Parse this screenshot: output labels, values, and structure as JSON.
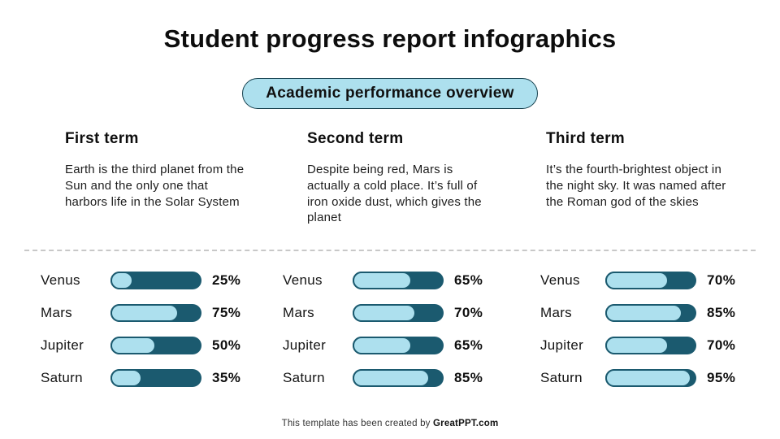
{
  "title": "Student progress report infographics",
  "badge": {
    "label": "Academic performance overview"
  },
  "columns": [
    {
      "heading": "First term",
      "description": "Earth is the third planet from the Sun and the only one that harbors life in the Solar System",
      "bars": [
        {
          "label": "Venus",
          "value": 25,
          "display": "25%"
        },
        {
          "label": "Mars",
          "value": 75,
          "display": "75%"
        },
        {
          "label": "Jupiter",
          "value": 50,
          "display": "50%"
        },
        {
          "label": "Saturn",
          "value": 35,
          "display": "35%"
        }
      ]
    },
    {
      "heading": "Second term",
      "description": "Despite being red, Mars is actually a cold place. It’s full of iron oxide dust, which gives the planet",
      "bars": [
        {
          "label": "Venus",
          "value": 65,
          "display": "65%"
        },
        {
          "label": "Mars",
          "value": 70,
          "display": "70%"
        },
        {
          "label": "Jupiter",
          "value": 65,
          "display": "65%"
        },
        {
          "label": "Saturn",
          "value": 85,
          "display": "85%"
        }
      ]
    },
    {
      "heading": "Third term",
      "description": "It’s the fourth-brightest object in the night sky. It was named after the Roman god of the skies",
      "bars": [
        {
          "label": "Venus",
          "value": 70,
          "display": "70%"
        },
        {
          "label": "Mars",
          "value": 85,
          "display": "85%"
        },
        {
          "label": "Jupiter",
          "value": 70,
          "display": "70%"
        },
        {
          "label": "Saturn",
          "value": 95,
          "display": "95%"
        }
      ]
    }
  ],
  "footer": {
    "text": "This template has been created by ",
    "brand": "GreatPPT.com"
  },
  "colors": {
    "bar-dark": "#1B5A6F",
    "bar-light": "#ADE0EE",
    "badge-border": "#16414F",
    "divider": "#C8C8C8",
    "text": "#111111"
  },
  "chart_data": [
    {
      "type": "bar",
      "title": "First term",
      "categories": [
        "Venus",
        "Mars",
        "Jupiter",
        "Saturn"
      ],
      "values": [
        25,
        75,
        50,
        35
      ],
      "unit": "%",
      "xlim": [
        0,
        100
      ],
      "orientation": "horizontal",
      "grid": false,
      "legend": "none"
    },
    {
      "type": "bar",
      "title": "Second term",
      "categories": [
        "Venus",
        "Mars",
        "Jupiter",
        "Saturn"
      ],
      "values": [
        65,
        70,
        65,
        85
      ],
      "unit": "%",
      "xlim": [
        0,
        100
      ],
      "orientation": "horizontal",
      "grid": false,
      "legend": "none"
    },
    {
      "type": "bar",
      "title": "Third term",
      "categories": [
        "Venus",
        "Mars",
        "Jupiter",
        "Saturn"
      ],
      "values": [
        70,
        85,
        70,
        95
      ],
      "unit": "%",
      "xlim": [
        0,
        100
      ],
      "orientation": "horizontal",
      "grid": false,
      "legend": "none"
    }
  ]
}
